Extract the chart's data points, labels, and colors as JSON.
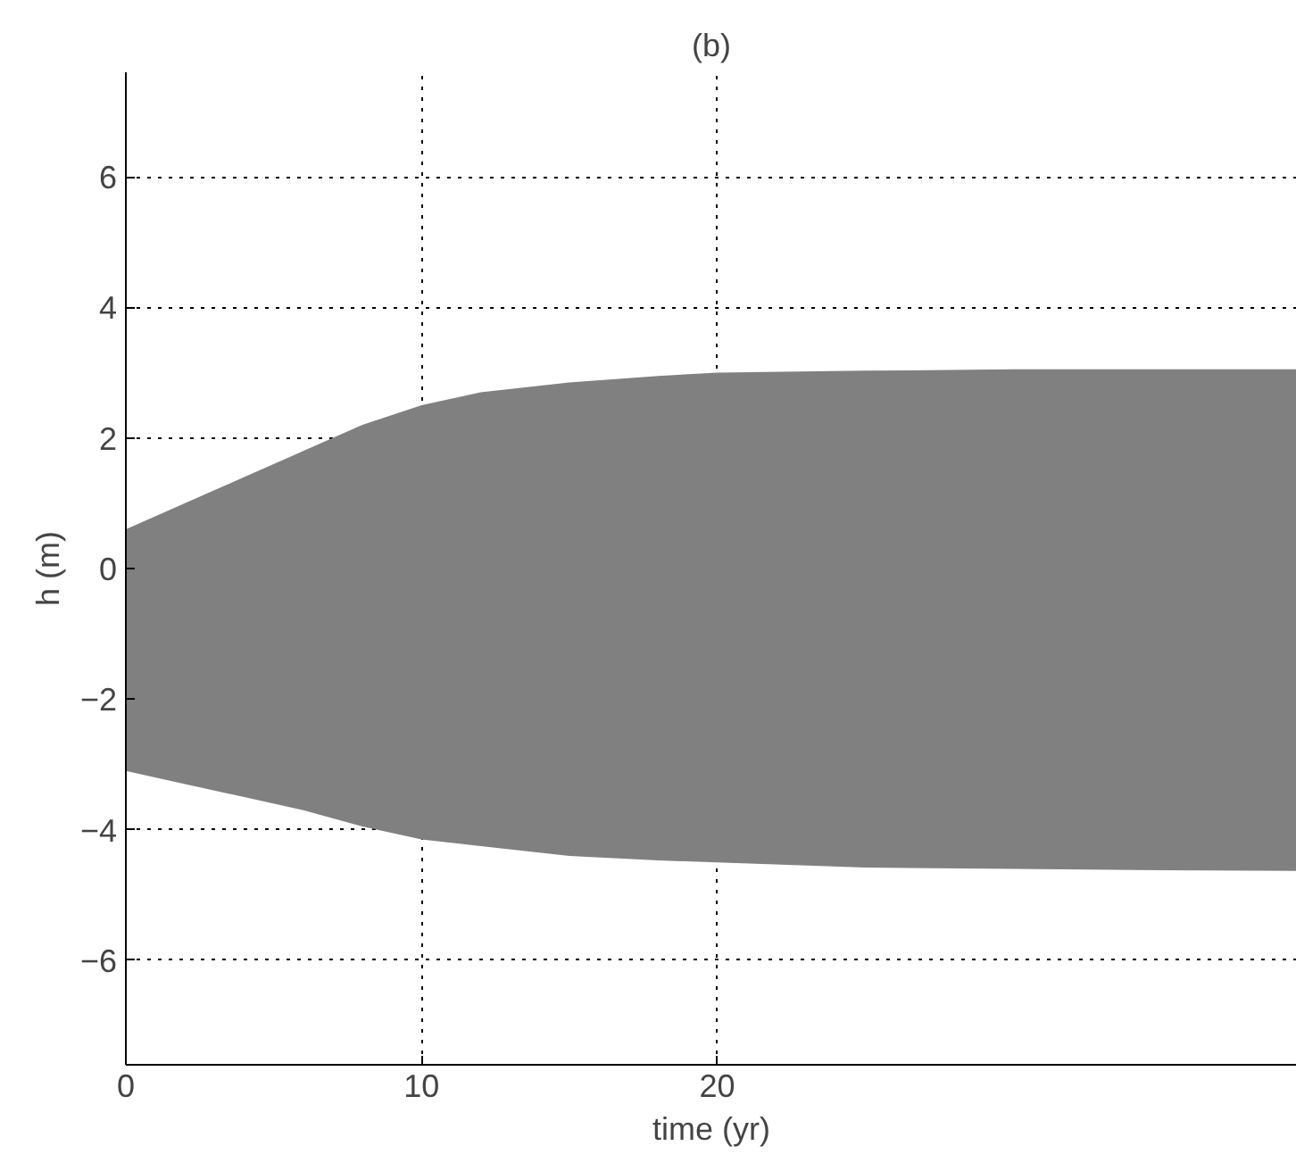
{
  "chart_data": {
    "type": "area",
    "title": "(b)",
    "xlabel": "time (yr)",
    "ylabel": "h (m)",
    "x": [
      0,
      2,
      4,
      6,
      8,
      10,
      12,
      15,
      18,
      20,
      25,
      30,
      35,
      39.6
    ],
    "series": [
      {
        "color": "#808080",
        "values": [
          0.6,
          1.0,
          1.4,
          1.8,
          2.2,
          2.5,
          2.7,
          2.85,
          2.95,
          3.0,
          3.03,
          3.05,
          3.05,
          3.05
        ]
      },
      {
        "color": "#808080",
        "values": [
          -3.1,
          -3.3,
          -3.5,
          -3.7,
          -3.95,
          -4.15,
          -4.25,
          -4.4,
          -4.47,
          -4.5,
          -4.58,
          -4.6,
          -4.62,
          -4.63
        ]
      }
    ],
    "xlim": [
      0,
      39.6
    ],
    "ylim": [
      -7.6,
      7.6
    ],
    "xticks": [
      0,
      10,
      20
    ],
    "yticks": [
      -6,
      -4,
      -2,
      0,
      2,
      4,
      6
    ],
    "grid": true,
    "line_style": "dotted"
  }
}
